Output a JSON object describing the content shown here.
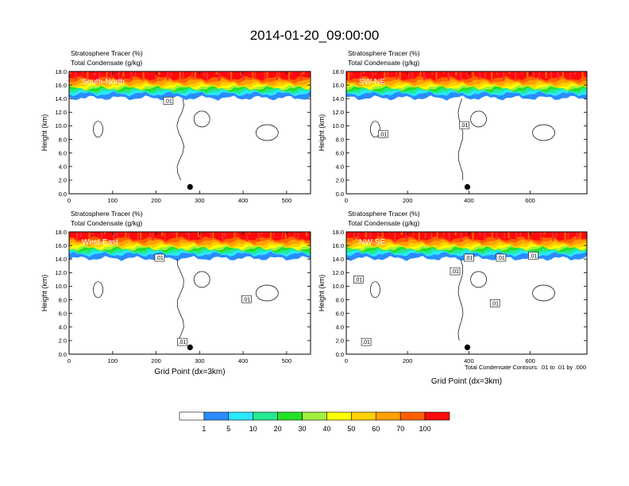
{
  "title": "2014-01-20_09:00:00",
  "panel_labels": {
    "line1": "Stratosphere Tracer   (%)",
    "line2": "Total Condensate   (g/kg)"
  },
  "contour_note": "Total Condensate Contours: .01 to .01 by .000",
  "contour_label": ".01",
  "colors": [
    "#ffffff",
    "#2a8cff",
    "#29e7ff",
    "#24e890",
    "#23e124",
    "#a3f03c",
    "#ffff00",
    "#ffd000",
    "#ffa000",
    "#ff6000",
    "#ff0a0a"
  ],
  "chart_data": [
    {
      "type": "heatmap",
      "name": "South-North",
      "xlabel": "",
      "ylabel": "Height (km)",
      "xlim": [
        0,
        555
      ],
      "ylim": [
        0,
        18
      ],
      "xticks": [
        "0",
        "100",
        "200",
        "300",
        "400",
        "500"
      ],
      "yticks": [
        "0.0",
        "2.0",
        "4.0",
        "6.0",
        "8.0",
        "10.0",
        "12.0",
        "14.0",
        "16.0",
        "18.0"
      ],
      "marker": {
        "x": 278,
        "y": 1.0
      },
      "contour_labels": [
        {
          "x": 228,
          "y": 13.7
        }
      ]
    },
    {
      "type": "heatmap",
      "name": "SW-NE",
      "xlabel": "",
      "ylabel": "Height (km)",
      "xlim": [
        0,
        785
      ],
      "ylim": [
        0,
        18
      ],
      "xticks": [
        "0",
        "200",
        "400",
        "600"
      ],
      "yticks": [
        "0.0",
        "2.0",
        "4.0",
        "6.0",
        "8.0",
        "10.0",
        "12.0",
        "14.0",
        "16.0",
        "18.0"
      ],
      "marker": {
        "x": 395,
        "y": 1.0
      },
      "contour_labels": [
        {
          "x": 385,
          "y": 10.1
        },
        {
          "x": 120,
          "y": 8.8
        }
      ]
    },
    {
      "type": "heatmap",
      "name": "West-East",
      "xlabel": "Grid Point (dx=3km)",
      "ylabel": "Height (km)",
      "xlim": [
        0,
        555
      ],
      "ylim": [
        0,
        18
      ],
      "xticks": [
        "0",
        "100",
        "200",
        "300",
        "400",
        "500"
      ],
      "yticks": [
        "0.0",
        "2.0",
        "4.0",
        "6.0",
        "8.0",
        "10.0",
        "12.0",
        "14.0",
        "16.0",
        "18.0"
      ],
      "marker": {
        "x": 278,
        "y": 1.0
      },
      "contour_labels": [
        {
          "x": 208,
          "y": 14.2
        },
        {
          "x": 408,
          "y": 8.1
        },
        {
          "x": 260,
          "y": 1.8
        }
      ]
    },
    {
      "type": "heatmap",
      "name": "NW-SE",
      "xlabel": "Grid Point (dx=3km)",
      "ylabel": "Height (km)",
      "xlim": [
        0,
        785
      ],
      "ylim": [
        0,
        18
      ],
      "xticks": [
        "0",
        "200",
        "400",
        "600"
      ],
      "yticks": [
        "0.0",
        "2.0",
        "4.0",
        "6.0",
        "8.0",
        "10.0",
        "12.0",
        "14.0",
        "16.0",
        "18.0"
      ],
      "marker": {
        "x": 395,
        "y": 1.0
      },
      "contour_labels": [
        {
          "x": 40,
          "y": 11.0
        },
        {
          "x": 355,
          "y": 12.2
        },
        {
          "x": 400,
          "y": 14.2
        },
        {
          "x": 505,
          "y": 14.2
        },
        {
          "x": 610,
          "y": 14.5
        },
        {
          "x": 485,
          "y": 7.5
        },
        {
          "x": 65,
          "y": 1.8
        }
      ]
    }
  ],
  "colorbar": {
    "labels": [
      "1",
      "5",
      "10",
      "20",
      "30",
      "40",
      "50",
      "60",
      "70",
      "100"
    ]
  }
}
